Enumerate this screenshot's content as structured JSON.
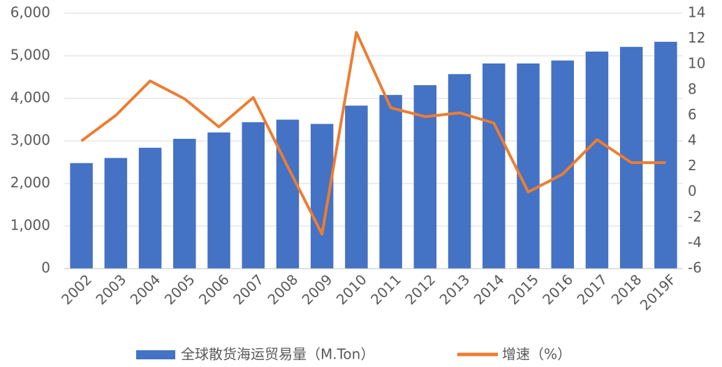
{
  "chart_data": {
    "type": "bar_line",
    "categories": [
      "2002",
      "2003",
      "2004",
      "2005",
      "2006",
      "2007",
      "2008",
      "2009",
      "2010",
      "2011",
      "2012",
      "2013",
      "2014",
      "2015",
      "2016",
      "2017",
      "2018",
      "2019F"
    ],
    "series": [
      {
        "name": "全球散货海运贸易量（M.Ton）",
        "type": "bar",
        "color": "#4472c4",
        "values": [
          2480,
          2600,
          2840,
          3050,
          3200,
          3440,
          3500,
          3400,
          3830,
          4080,
          4310,
          4570,
          4820,
          4820,
          4890,
          5100,
          5210,
          5330
        ]
      },
      {
        "name": "增速（%）",
        "type": "line",
        "axis": "y2",
        "color": "#ed7d31",
        "values": [
          4.0,
          6.0,
          8.7,
          7.3,
          5.1,
          7.4,
          2.0,
          -3.3,
          12.5,
          6.6,
          5.9,
          6.2,
          5.4,
          0.0,
          1.4,
          4.1,
          2.3,
          2.3
        ]
      }
    ],
    "ylim": [
      0,
      6000
    ],
    "yticks": [
      0,
      {
        "value": 1000,
        "label": "1,000"
      },
      {
        "value": 2000,
        "label": "2,000"
      },
      {
        "value": 3000,
        "label": "3,000"
      },
      {
        "value": 4000,
        "label": "4,000"
      },
      {
        "value": 5000,
        "label": "5,000"
      },
      {
        "value": 6000,
        "label": "6,000"
      }
    ],
    "y2lim": [
      -6,
      14
    ],
    "y2ticks": [
      -6,
      -4,
      -2,
      0,
      2,
      4,
      6,
      8,
      10,
      12,
      14
    ],
    "grid": true,
    "legend": "bottom"
  }
}
